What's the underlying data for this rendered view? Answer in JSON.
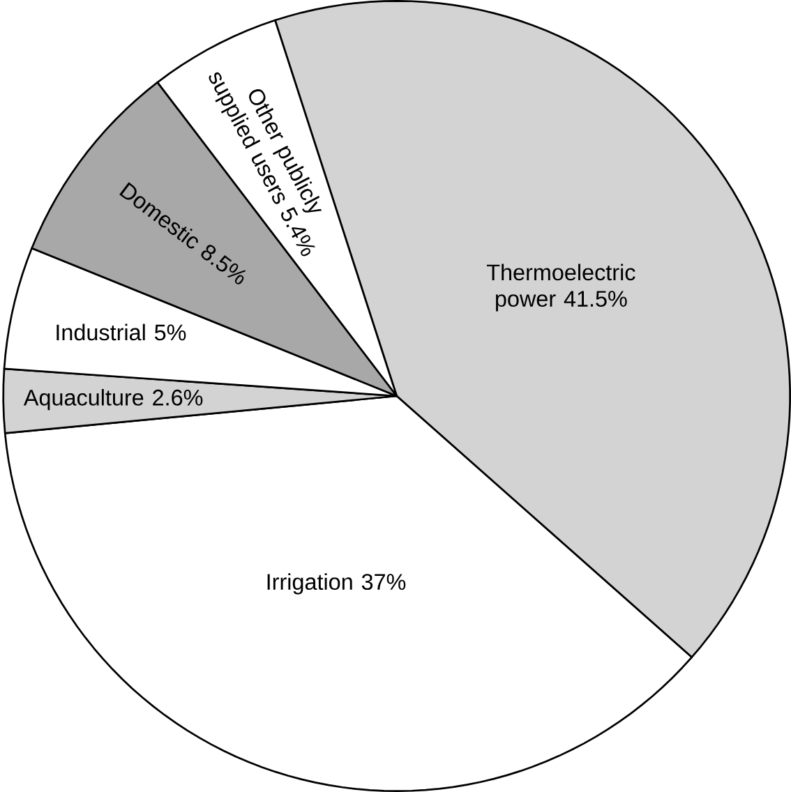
{
  "chart_data": {
    "type": "pie",
    "categories": [
      "Thermoelectric power",
      "Irrigation",
      "Aquaculture",
      "Industrial",
      "Domestic",
      "Other publicly supplied users"
    ],
    "values": [
      41.5,
      37,
      2.6,
      5,
      8.5,
      5.4
    ],
    "value_labels": [
      "41.5%",
      "37%",
      "2.6%",
      "5%",
      "8.5%",
      "5.4%"
    ],
    "colors": [
      "#d3d3d3",
      "#ffffff",
      "#d3d3d3",
      "#ffffff",
      "#a8a8a8",
      "#ffffff"
    ]
  }
}
